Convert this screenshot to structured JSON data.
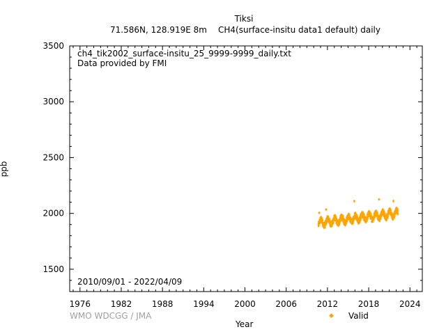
{
  "title_line1": "Tiksi",
  "title_coords": "71.586N, 128.919E 8m",
  "title_series": "CH4(surface-insitu data1 default) daily",
  "file_name": "ch4_tik2002_surface-insitu_25_9999-9999_daily.txt",
  "provider": "Data provided by FMI",
  "date_range": "2010/09/01 - 2022/04/09",
  "watermark": "WMO WDCGG / JMA",
  "legend_valid": "Valid",
  "colors": {
    "valid": "#ffa500"
  },
  "chart_data": {
    "type": "scatter",
    "title": "Tiksi",
    "xlabel": "Year",
    "ylabel": "ppb",
    "xlim": [
      1974.5,
      2025.8
    ],
    "ylim": [
      1300,
      3500
    ],
    "xticks": [
      1976,
      1982,
      1988,
      1994,
      2000,
      2006,
      2012,
      2018,
      2024
    ],
    "yticks": [
      1500,
      2000,
      2500,
      3000,
      3500
    ],
    "grid": false,
    "legend": "bottom-right",
    "series": [
      {
        "name": "Valid",
        "x_start": 2010.67,
        "x_end": 2022.27,
        "baseline_start": 1915,
        "baseline_trend_ppb_per_year": 7.5,
        "seasonal_amplitude": 28,
        "scatter": 25,
        "peaks": [
          [
            2010.8,
            2005
          ],
          [
            2011.8,
            2035
          ],
          [
            2015.9,
            2110
          ],
          [
            2019.5,
            2125
          ],
          [
            2021.6,
            2110
          ]
        ]
      }
    ]
  }
}
